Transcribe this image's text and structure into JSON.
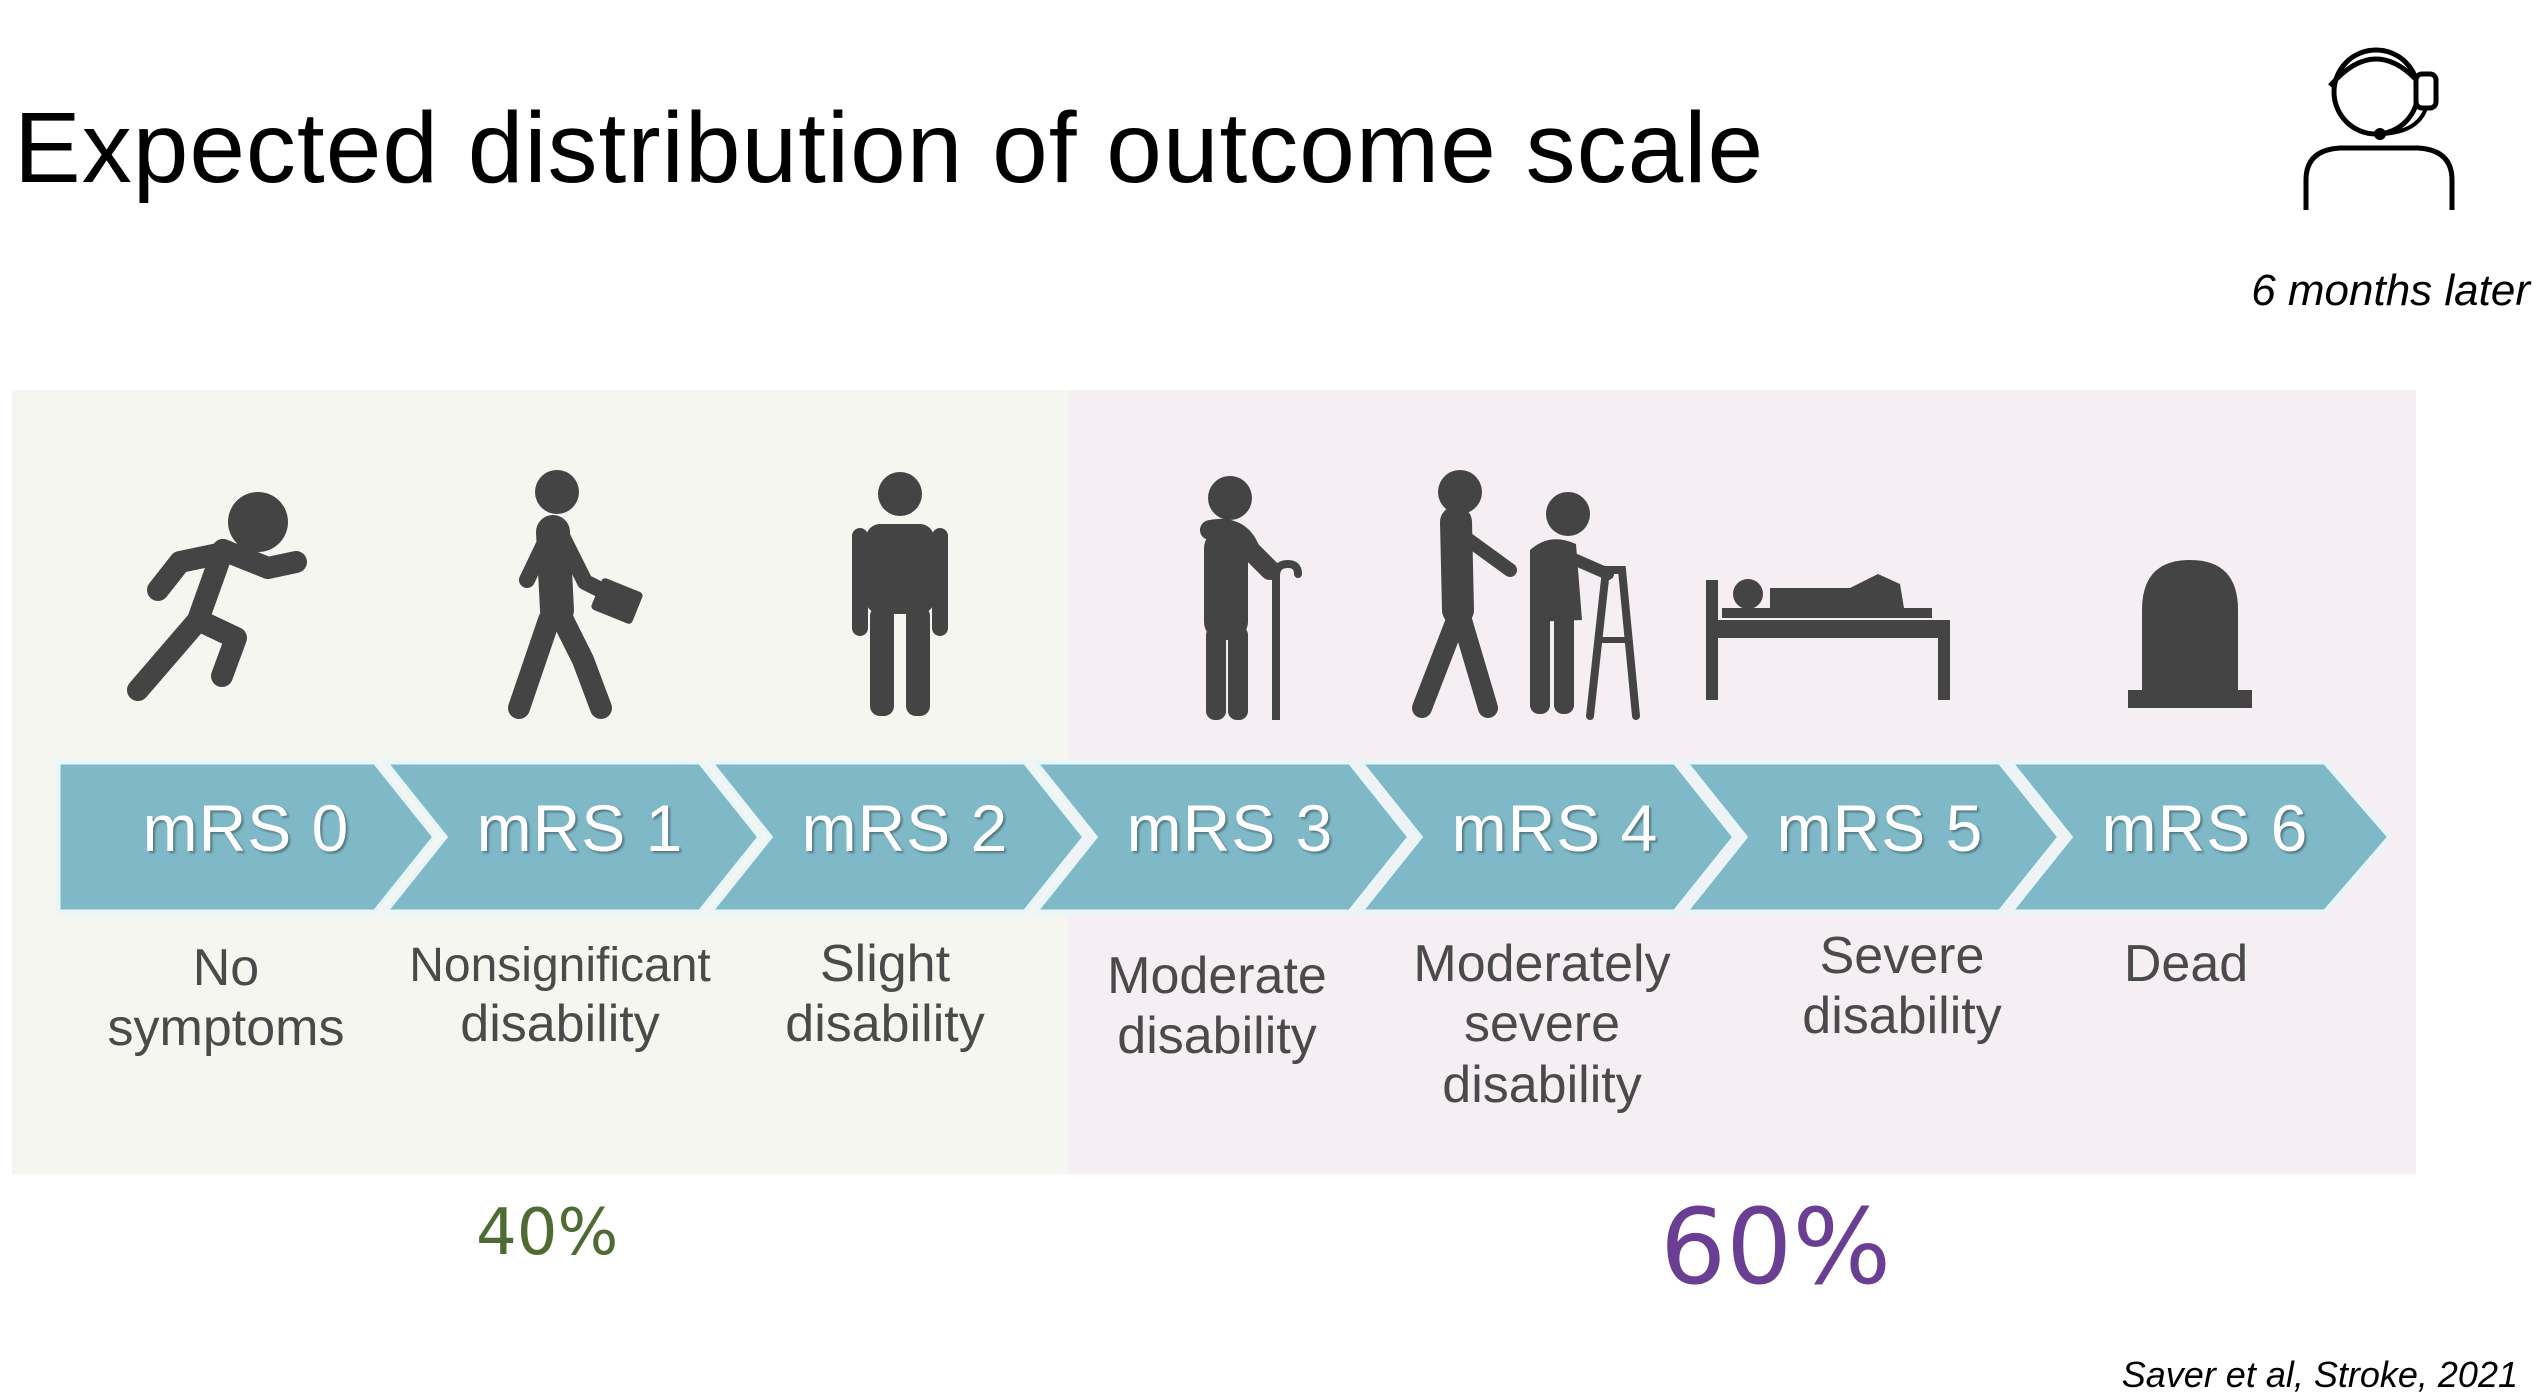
{
  "title": "Expected distribution of outcome scale",
  "timepoint": "6 months later",
  "citation": "Saver et al, Stroke, 2021",
  "groups": [
    {
      "label": "40%",
      "color": "#4f6b34",
      "range": "mRS 0–2"
    },
    {
      "label": "60%",
      "color": "#6a3f93",
      "range": "mRS 3–6"
    }
  ],
  "scale": [
    {
      "label": "mRS 0",
      "description": [
        "No",
        "symptoms"
      ],
      "icon": "running-person-icon"
    },
    {
      "label": "mRS 1",
      "description": [
        "Nonsignificant",
        "disability"
      ],
      "icon": "walking-person-icon"
    },
    {
      "label": "mRS 2",
      "description": [
        "Slight",
        "disability"
      ],
      "icon": "standing-person-icon"
    },
    {
      "label": "mRS 3",
      "description": [
        "Moderate",
        "disability"
      ],
      "icon": "person-with-cane-icon"
    },
    {
      "label": "mRS 4",
      "description": [
        "Moderately",
        "severe",
        "disability"
      ],
      "icon": "assisted-person-with-walker-icon"
    },
    {
      "label": "mRS 5",
      "description": [
        "Severe",
        "disability"
      ],
      "icon": "person-in-bed-icon"
    },
    {
      "label": "mRS 6",
      "description": [
        "Dead"
      ],
      "icon": "tombstone-icon"
    }
  ],
  "colors": {
    "arrow": "#7fb9c8",
    "arrow_outline": "#ffffff",
    "icon": "#444444"
  }
}
